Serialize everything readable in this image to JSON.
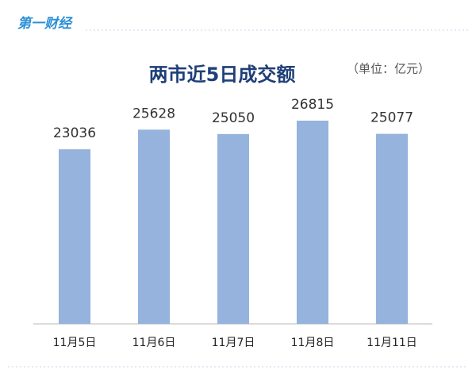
{
  "logo": "第一财经",
  "chart_data": {
    "type": "bar",
    "title": "两市近5日成交额",
    "unit": "（单位：亿元）",
    "categories": [
      "11月5日",
      "11月6日",
      "11月7日",
      "11月8日",
      "11月11日"
    ],
    "values": [
      23036,
      25628,
      25050,
      26815,
      25077
    ],
    "color": "#95b3dc"
  }
}
